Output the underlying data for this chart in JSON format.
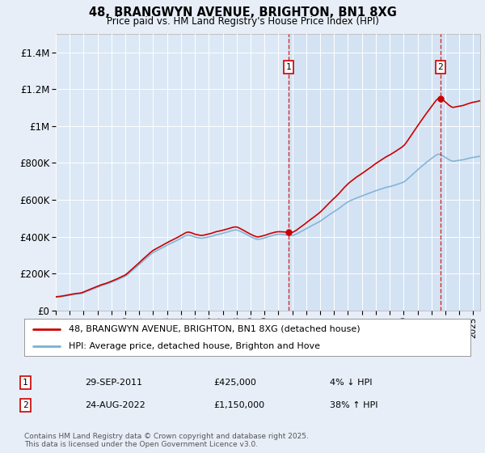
{
  "title": "48, BRANGWYN AVENUE, BRIGHTON, BN1 8XG",
  "subtitle": "Price paid vs. HM Land Registry's House Price Index (HPI)",
  "legend_line1": "48, BRANGWYN AVENUE, BRIGHTON, BN1 8XG (detached house)",
  "legend_line2": "HPI: Average price, detached house, Brighton and Hove",
  "transaction1_date": "29-SEP-2011",
  "transaction1_price": "£425,000",
  "transaction1_hpi": "4% ↓ HPI",
  "transaction2_date": "24-AUG-2022",
  "transaction2_price": "£1,150,000",
  "transaction2_hpi": "38% ↑ HPI",
  "footer": "Contains HM Land Registry data © Crown copyright and database right 2025.\nThis data is licensed under the Open Government Licence v3.0.",
  "bg_color": "#e8eef8",
  "plot_bg_color": "#dce8f5",
  "grid_color": "#ffffff",
  "hpi_line_color": "#7ab0d4",
  "price_line_color": "#cc0000",
  "dashed_line_color": "#cc0000",
  "ylim": [
    0,
    1500000
  ],
  "yticks": [
    0,
    200000,
    400000,
    600000,
    800000,
    1000000,
    1200000,
    1400000
  ],
  "ytick_labels": [
    "£0",
    "£200K",
    "£400K",
    "£600K",
    "£800K",
    "£1M",
    "£1.2M",
    "£1.4M"
  ],
  "transaction1_x": 2011.75,
  "transaction2_x": 2022.65,
  "t1_y": 425000,
  "t2_y": 1150000,
  "xmin": 1995,
  "xmax": 2025.5
}
